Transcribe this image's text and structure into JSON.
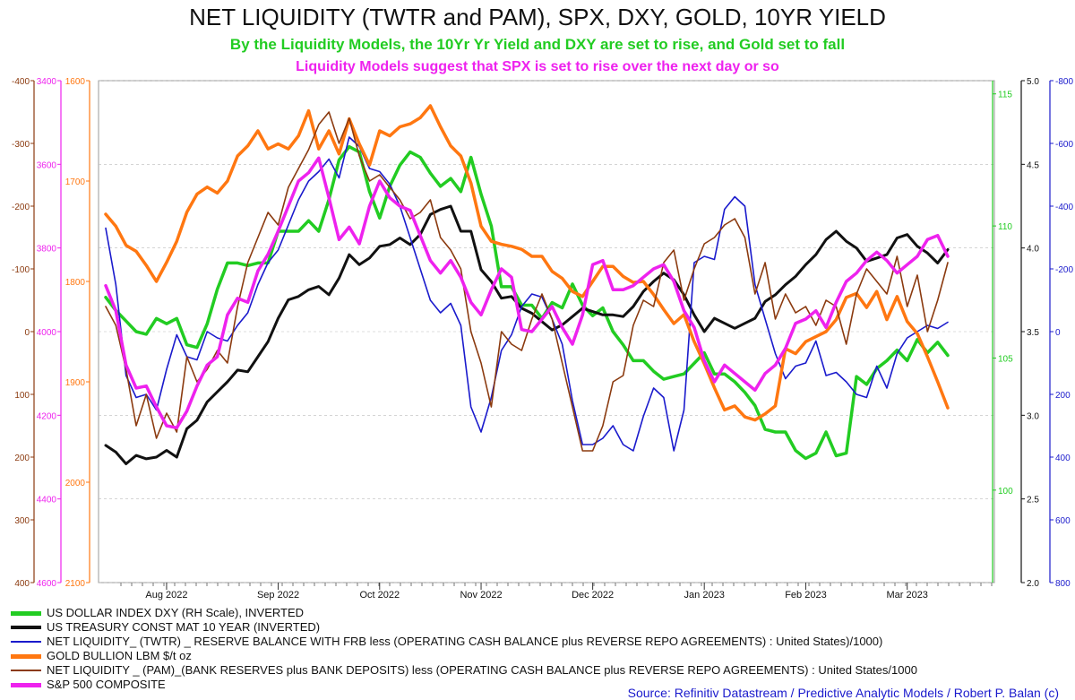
{
  "chart_data": {
    "type": "line",
    "title": "NET LIQUIDITY (TWTR and PAM), SPX, DXY, GOLD, 10YR YIELD",
    "subtitles": [
      "By the Liquidity Models, the 10Yr Yr Yield and DXY are set to rise, and Gold set to fall",
      "Liquidity Models suggest that SPX is set to rise over the next day or so"
    ],
    "x_tick_labels": [
      "Aug 2022",
      "Sep 2022",
      "Oct 2022",
      "Nov 2022",
      "Dec 2022",
      "Jan 2023",
      "Feb 2023",
      "Mar 2023"
    ],
    "grid": true,
    "legend_position": "bottom-left",
    "axes": [
      {
        "id": "pam",
        "side": "left",
        "color": "#8b3a0f",
        "ticks": [
          "400",
          "300",
          "200",
          "100",
          "0",
          "-100",
          "-200",
          "-300",
          "-400"
        ],
        "range": [
          -400,
          400
        ]
      },
      {
        "id": "spx",
        "side": "left",
        "color": "#ee22ee",
        "ticks": [
          "4600",
          "4400",
          "4200",
          "4000",
          "3800",
          "3600",
          "3400"
        ],
        "range": [
          3400,
          4600
        ]
      },
      {
        "id": "gold",
        "side": "left",
        "color": "#ff7711",
        "ticks": [
          "2100",
          "2000",
          "1900",
          "1800",
          "1700",
          "1600"
        ],
        "range": [
          1600,
          2100
        ]
      },
      {
        "id": "dxy",
        "side": "right",
        "color": "#22cc22",
        "ticks": [
          "100",
          "105",
          "110",
          "115"
        ],
        "range": [
          115.5,
          96.5
        ],
        "inverted": true
      },
      {
        "id": "yield",
        "side": "right",
        "color": "#111111",
        "ticks": [
          "2.0",
          "2.5",
          "3.0",
          "3.5",
          "4.0",
          "4.5",
          "5.0"
        ],
        "range": [
          5.0,
          2.0
        ],
        "inverted": true
      },
      {
        "id": "twtr",
        "side": "right",
        "color": "#1a1acc",
        "ticks": [
          "800",
          "600",
          "400",
          "200",
          "0",
          "-200",
          "-400",
          "-600",
          "-800"
        ],
        "range": [
          -800,
          800
        ]
      }
    ],
    "series": [
      {
        "name": "US DOLLAR INDEX DXY (RH Scale), INVERTED",
        "axis": "dxy",
        "color": "#22cc22",
        "width": 3.5,
        "values": [
          107.3,
          106.8,
          106.4,
          106.0,
          105.9,
          106.5,
          106.3,
          106.5,
          105.5,
          105.4,
          106.3,
          107.6,
          108.6,
          108.6,
          108.5,
          108.6,
          108.6,
          109.8,
          109.8,
          109.8,
          110.2,
          109.8,
          111.0,
          112.5,
          113.0,
          112.8,
          111.3,
          110.3,
          111.5,
          112.3,
          112.8,
          112.6,
          112.0,
          111.5,
          111.8,
          111.3,
          112.6,
          111.2,
          110.0,
          107.7,
          107.7,
          107.0,
          107.0,
          106.5,
          107.1,
          106.9,
          107.8,
          107.0,
          106.6,
          106.9,
          106.0,
          105.5,
          104.9,
          104.9,
          104.5,
          104.2,
          104.3,
          104.4,
          104.8,
          105.2,
          104.4,
          104.4,
          104.1,
          103.7,
          103.2,
          102.3,
          102.2,
          102.2,
          101.5,
          101.2,
          101.4,
          102.2,
          101.3,
          101.4,
          104.3,
          104.0,
          104.6,
          104.9,
          105.3,
          104.9,
          105.7,
          105.2,
          105.6,
          105.1
        ]
      },
      {
        "name": "US TREASURY CONST MAT 10 YEAR (INVERTED)",
        "axis": "yield",
        "color": "#111111",
        "width": 3,
        "values": [
          2.82,
          2.78,
          2.71,
          2.76,
          2.74,
          2.75,
          2.79,
          2.75,
          2.92,
          2.97,
          3.08,
          3.14,
          3.2,
          3.27,
          3.26,
          3.35,
          3.44,
          3.58,
          3.69,
          3.71,
          3.75,
          3.77,
          3.72,
          3.82,
          3.96,
          3.9,
          3.94,
          4.01,
          4.02,
          4.06,
          4.02,
          4.08,
          4.2,
          4.23,
          4.25,
          4.1,
          4.1,
          3.87,
          3.8,
          3.7,
          3.71,
          3.64,
          3.61,
          3.56,
          3.51,
          3.54,
          3.59,
          3.64,
          3.62,
          3.6,
          3.6,
          3.59,
          3.65,
          3.74,
          3.8,
          3.85,
          3.81,
          3.72,
          3.6,
          3.5,
          3.58,
          3.55,
          3.52,
          3.55,
          3.58,
          3.68,
          3.72,
          3.78,
          3.83,
          3.9,
          3.96,
          4.05,
          4.1,
          4.04,
          4.0,
          3.92,
          3.94,
          3.96,
          4.06,
          4.08,
          4.01,
          3.97,
          3.91,
          3.99
        ]
      },
      {
        "name": "NET LIQUIDITY_ (TWTR) _ RESERVE BALANCE WITH FRB less (OPERATING CASH BALANCE plus REVERSE REPO AGREEMENTS) : United States)/1000)",
        "axis": "twtr",
        "color": "#1a1acc",
        "width": 1.6,
        "values": [
          -330,
          -150,
          140,
          210,
          200,
          250,
          120,
          10,
          80,
          90,
          0,
          20,
          30,
          -20,
          -60,
          -150,
          -220,
          -260,
          -340,
          -420,
          -480,
          -510,
          -550,
          -490,
          -620,
          -590,
          -520,
          -510,
          -470,
          -400,
          -300,
          -200,
          -100,
          -60,
          -90,
          -20,
          240,
          320,
          210,
          60,
          10,
          -80,
          -120,
          -110,
          -40,
          40,
          220,
          360,
          360,
          340,
          300,
          360,
          380,
          270,
          180,
          210,
          380,
          250,
          -220,
          -240,
          -230,
          -390,
          -430,
          -400,
          -150,
          -40,
          70,
          150,
          110,
          100,
          30,
          140,
          130,
          160,
          200,
          210,
          110,
          180,
          70,
          20,
          0,
          -20,
          -10,
          -30
        ]
      },
      {
        "name": "GOLD BULLION LBM $/t oz",
        "axis": "gold",
        "color": "#ff7711",
        "width": 3.5,
        "values": [
          1733,
          1745,
          1764,
          1770,
          1784,
          1800,
          1781,
          1760,
          1731,
          1713,
          1706,
          1712,
          1700,
          1675,
          1665,
          1650,
          1668,
          1663,
          1668,
          1655,
          1630,
          1668,
          1650,
          1673,
          1638,
          1663,
          1684,
          1650,
          1655,
          1646,
          1643,
          1637,
          1625,
          1646,
          1665,
          1675,
          1702,
          1745,
          1760,
          1763,
          1765,
          1768,
          1775,
          1775,
          1790,
          1797,
          1810,
          1815,
          1800,
          1785,
          1785,
          1795,
          1801,
          1800,
          1813,
          1828,
          1842,
          1833,
          1860,
          1882,
          1906,
          1928,
          1924,
          1935,
          1938,
          1932,
          1924,
          1867,
          1872,
          1860,
          1855,
          1850,
          1838,
          1816,
          1812,
          1826,
          1810,
          1838,
          1815,
          1840,
          1852,
          1875,
          1900,
          1926
        ]
      },
      {
        "name": "NET LIQUIDITY _ (PAM)_(BANK RESERVES plus BANK DEPOSITS) less (OPERATING CASH BALANCE plus REVERSE REPO AGREEMENTS) : United States/1000",
        "axis": "pam",
        "color": "#8b3a0f",
        "width": 1.6,
        "values": [
          -40,
          -10,
          60,
          150,
          100,
          170,
          130,
          160,
          40,
          80,
          60,
          30,
          50,
          -40,
          -110,
          -150,
          -190,
          -170,
          -230,
          -260,
          -290,
          -330,
          -350,
          -300,
          -340,
          -280,
          -240,
          -250,
          -230,
          -210,
          -180,
          -190,
          -210,
          -150,
          -130,
          -100,
          0,
          50,
          120,
          0,
          20,
          30,
          -20,
          -60,
          -20,
          50,
          120,
          190,
          190,
          150,
          80,
          70,
          -10,
          -50,
          -40,
          -110,
          -130,
          -50,
          -100,
          -140,
          -150,
          -170,
          -180,
          -150,
          -60,
          -110,
          -20,
          -60,
          -30,
          -40,
          -10,
          -50,
          -40,
          20,
          -60,
          -100,
          -80,
          -60,
          -120,
          -40,
          -90,
          0,
          -50,
          -110
        ]
      },
      {
        "name": "S&P 500 COMPOSITE",
        "axis": "spx",
        "color": "#ee22ee",
        "width": 3.5,
        "values": [
          3890,
          3950,
          4080,
          4135,
          4130,
          4180,
          4225,
          4230,
          4190,
          4130,
          4080,
          4060,
          3960,
          3920,
          3930,
          3855,
          3815,
          3760,
          3700,
          3640,
          3620,
          3585,
          3680,
          3780,
          3750,
          3790,
          3700,
          3640,
          3680,
          3700,
          3710,
          3770,
          3830,
          3860,
          3830,
          3870,
          3930,
          3960,
          3900,
          3850,
          3870,
          3995,
          4000,
          3970,
          3940,
          3990,
          4030,
          3960,
          3840,
          3830,
          3900,
          3900,
          3890,
          3870,
          3850,
          3840,
          3880,
          3950,
          3990,
          4070,
          4120,
          4080,
          4100,
          4120,
          4140,
          4100,
          4080,
          4040,
          3980,
          3970,
          3950,
          3990,
          3930,
          3880,
          3860,
          3830,
          3810,
          3830,
          3860,
          3840,
          3820,
          3780,
          3770,
          3820
        ]
      }
    ],
    "legend": [
      {
        "label": "US DOLLAR INDEX DXY (RH Scale), INVERTED",
        "color": "#22cc22",
        "width": 5
      },
      {
        "label": "US TREASURY CONST MAT 10 YEAR (INVERTED)",
        "color": "#111111",
        "width": 4
      },
      {
        "label": "NET LIQUIDITY_ (TWTR) _ RESERVE BALANCE WITH FRB less (OPERATING CASH BALANCE plus REVERSE REPO AGREEMENTS) : United States)/1000)",
        "color": "#1a1acc",
        "width": 2
      },
      {
        "label": "GOLD BULLION LBM $/t oz",
        "color": "#ff7711",
        "width": 5
      },
      {
        "label": "NET LIQUIDITY _ (PAM)_(BANK RESERVES plus BANK DEPOSITS) less (OPERATING CASH BALANCE plus REVERSE REPO AGREEMENTS) : United States/1000",
        "color": "#8b3a0f",
        "width": 2
      },
      {
        "label": "S&P 500 COMPOSITE",
        "color": "#ee22ee",
        "width": 5
      }
    ]
  },
  "source": "Source: Refinitiv Datastream / Predictive Analytic Models / Robert P. Balan (c)"
}
